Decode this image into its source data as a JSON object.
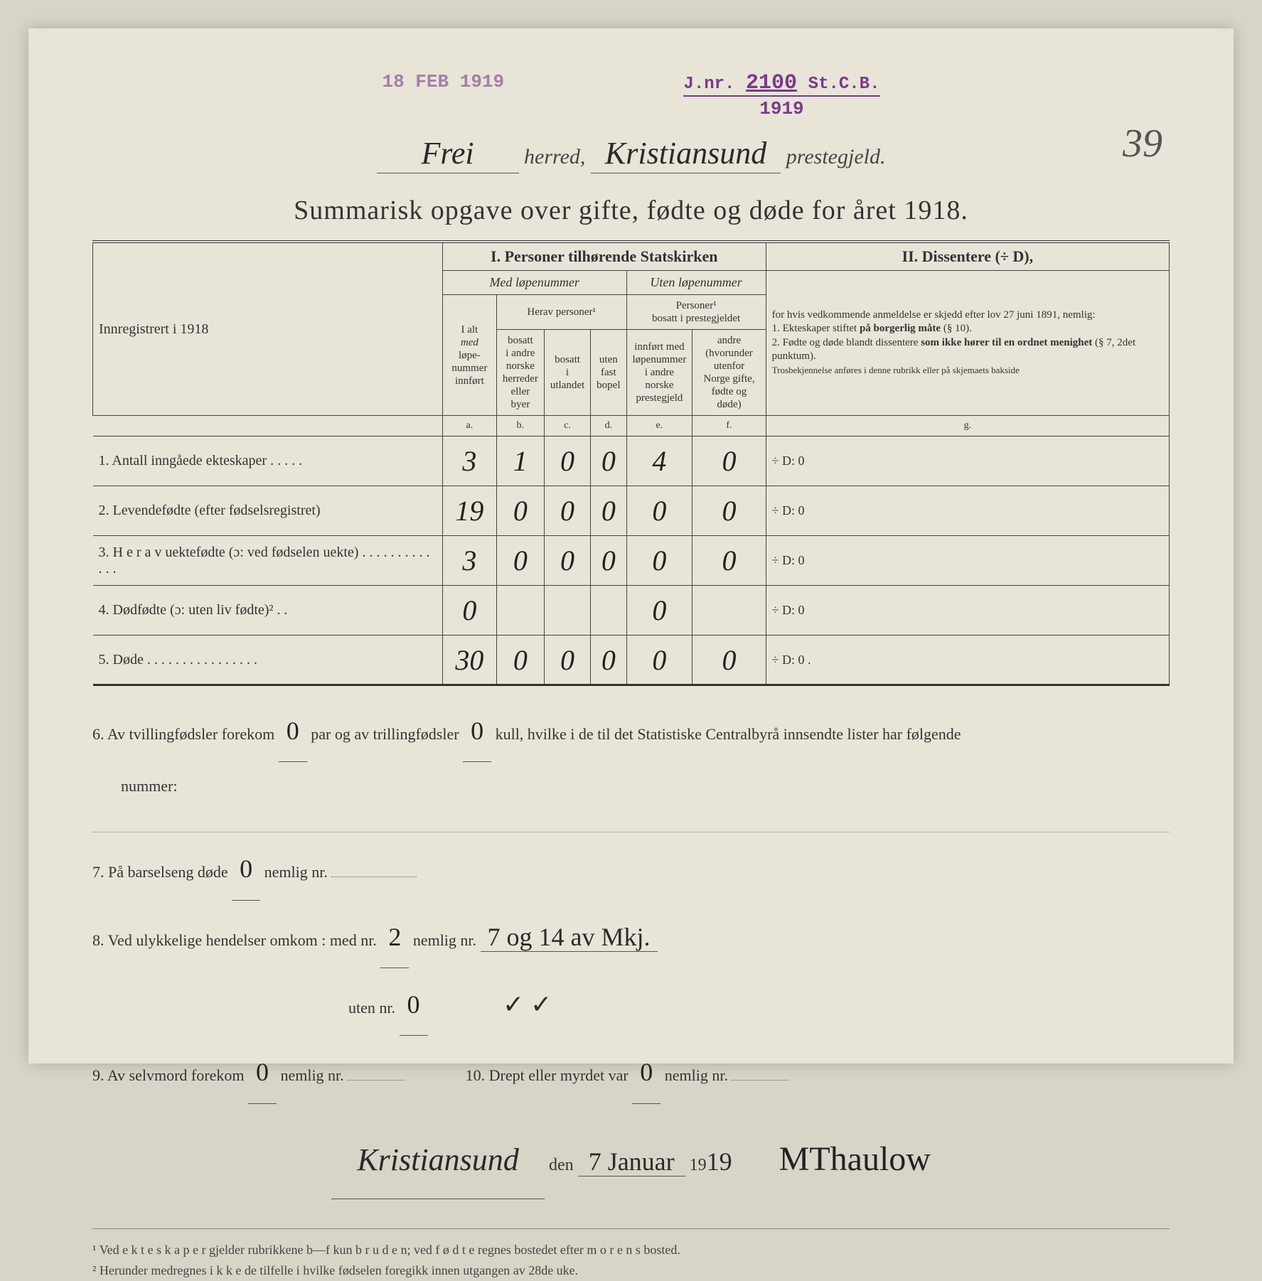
{
  "stamps": {
    "left": "18 FEB 1919",
    "jnr_prefix": "J.nr.",
    "jnr_num": "2100",
    "jnr_suffix": "St.C.B.",
    "year": "1919"
  },
  "page_number": "39",
  "header": {
    "herred_value": "Frei",
    "herred_label": "herred,",
    "prestegjeld_value": "Kristiansund",
    "prestegjeld_label": "prestegjeld."
  },
  "title": "Summarisk opgave over gifte, fødte og døde for året 1918.",
  "table": {
    "section1": "I.  Personer tilhørende Statskirken",
    "section2": "II.  Dissentere (÷ D),",
    "med_lope": "Med løpenummer",
    "uten_lope": "Uten løpenummer",
    "herav_personer": "Herav personer¹",
    "personer_bosatt": "Personer¹\nbosatt i prestegjeldet",
    "innregistrert": "Innregistrert i 1918",
    "col_a_head": "I alt\nmed løpe-\nnummer\ninnført",
    "col_b_head": "bosatt\ni andre\nnorske\nherreder\neller\nbyer",
    "col_c_head": "bosatt\ni\nutlandet",
    "col_d_head": "uten\nfast\nbopel",
    "col_e_head": "innført med\nløpenummer\ni andre\nnorske\nprestegjeld",
    "col_f_head": "andre\n(hvorunder\nutenfor\nNorge gifte,\nfødte og døde)",
    "dissenter_text": "for hvis vedkommende anmeldelse er skjedd efter lov 27 juni 1891, nemlig:\n1. Ekteskaper stiftet på borgerlig måte (§ 10).\n2. Fødte og døde blandt dissentere som ikke hører til en ordnet menighet (§ 7, 2det punktum).\nTrosbekjennelse anføres i denne rubrikk eller på skjemaets bakside",
    "letters": [
      "a.",
      "b.",
      "c.",
      "d.",
      "e.",
      "f.",
      "g."
    ],
    "rows": [
      {
        "label": "1. Antall inngåede ekteskaper . . . . .",
        "a": "3",
        "b": "1",
        "c": "0",
        "d": "0",
        "e": "4",
        "f": "0",
        "g": "÷ D:   0"
      },
      {
        "label": "2. Levendefødte (efter fødselsregistret)",
        "a": "19",
        "b": "0",
        "c": "0",
        "d": "0",
        "e": "0",
        "f": "0",
        "g": "÷ D:   0"
      },
      {
        "label": "3. H e r a v uektefødte (ɔ: ved fødselen uekte) . . . . . . . . . . . . .",
        "a": "3",
        "b": "0",
        "c": "0",
        "d": "0",
        "e": "0",
        "f": "0",
        "g": "÷ D:   0"
      },
      {
        "label": "4. Dødfødte (ɔ: uten liv fødte)² . .",
        "a": "0",
        "b": "",
        "c": "",
        "d": "",
        "e": "0",
        "f": "",
        "g": "÷ D:   0"
      },
      {
        "label": "5. Døde . . . . . . . . . . . . . . . .",
        "a": "30",
        "b": "0",
        "c": "0",
        "d": "0",
        "e": "0",
        "f": "0",
        "g": "÷ D:   0 ."
      }
    ]
  },
  "lower": {
    "line6_pre": "6. Av tvillingfødsler forekom",
    "line6_val1": "0",
    "line6_mid": "par og av trillingfødsler",
    "line6_val2": "0",
    "line6_post": "kull, hvilke i de til det Statistiske Centralbyrå innsendte lister har følgende",
    "line6_nummer": "nummer:",
    "line7_pre": "7. På barselseng døde",
    "line7_val": "0",
    "line7_post": "nemlig nr.",
    "line8_pre": "8. Ved ulykkelige hendelser omkom :  med nr.",
    "line8_val1": "2",
    "line8_mid": "nemlig nr.",
    "line8_val2": "7 og 14 av Mkj.",
    "line8b_pre": "uten nr.",
    "line8b_val": "0",
    "line8b_marks": "✓   ✓",
    "line9_pre": "9. Av selvmord forekom",
    "line9_val": "0",
    "line9_post": "nemlig nr.",
    "line10_pre": "10. Drept eller myrdet var",
    "line10_val": "0",
    "line10_post": "nemlig nr.",
    "place": "Kristiansund",
    "den": "den",
    "date": "7 Januar",
    "year_prefix": "19",
    "year_suffix": "19",
    "signature": "MThaulow"
  },
  "footnotes": {
    "f1": "¹  Ved e k t e s k a p e r gjelder rubrikkene b—f kun b r u d e n; ved f ø d t e regnes bostedet efter m o r e n s bosted.",
    "f2": "²  Herunder medregnes i k k e de tilfelle i hvilke fødselen foregikk innen utgangen av 28de uke."
  }
}
